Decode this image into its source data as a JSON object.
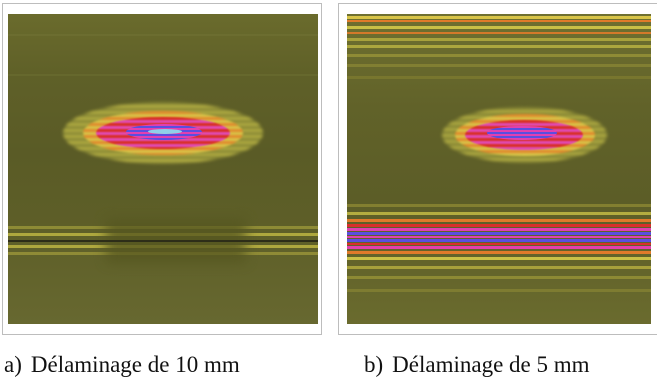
{
  "figures": [
    {
      "id": "a",
      "caption_letter": "a)",
      "caption_text": "Délaminage de 10 mm"
    },
    {
      "id": "b",
      "caption_letter": "b)",
      "caption_text": "Délaminage de 5 mm"
    }
  ],
  "colors": {
    "background_olive": "#5f6028",
    "band_yellow": "#c9c046",
    "band_orange": "#e0782a",
    "band_red": "#d8302a",
    "band_magenta": "#e040b0",
    "band_blue": "#5a4ee0",
    "band_cyan": "#8fd0e8"
  }
}
